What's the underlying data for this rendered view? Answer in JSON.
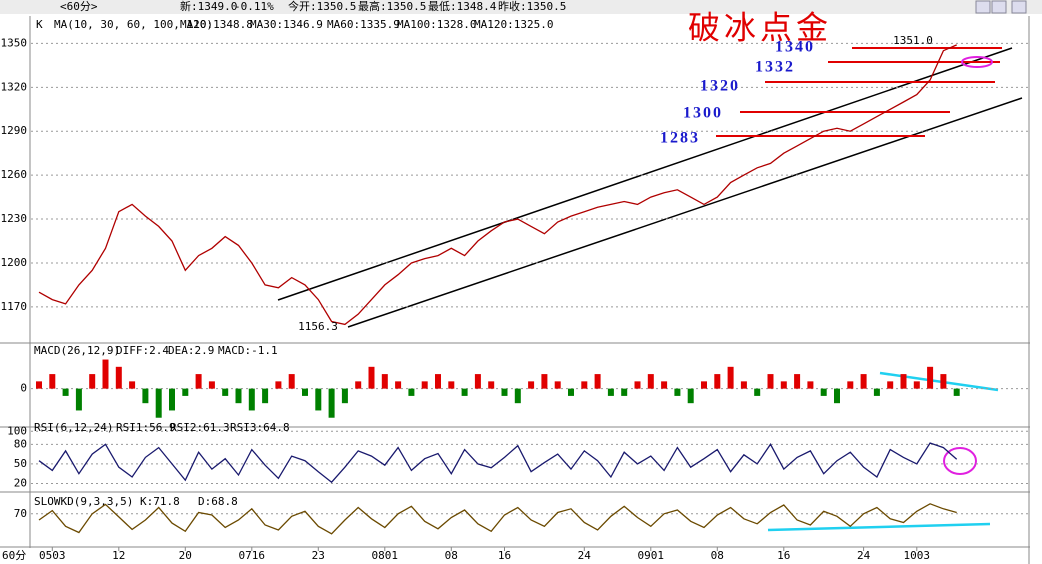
{
  "header": {
    "period": "<60分>",
    "items": [
      "新:1349.0",
      "-0.11%",
      "今开:1350.5",
      "最高:1350.5",
      "最低:1348.4",
      "昨收:1350.5"
    ],
    "corner": "60分"
  },
  "chart_data": [
    {
      "type": "line",
      "title": "K",
      "legend": [
        "MA(10, 30, 60, 100, 120)",
        "MA10:1348.8",
        "MA30:1346.9",
        "MA60:1335.9",
        "MA100:1328.0",
        "MA120:1325.0"
      ],
      "annotations": [
        "破冰点金",
        "1340",
        "1332",
        "1320",
        "1300",
        "1283",
        "1351.0",
        "1156.3"
      ],
      "color": "#b00000",
      "ylim": [
        1146,
        1366
      ],
      "yticks": [
        1170,
        1200,
        1230,
        1260,
        1290,
        1320,
        1350
      ],
      "grid": true,
      "values": [
        1180,
        1175,
        1172,
        1185,
        1195,
        1210,
        1235,
        1240,
        1232,
        1225,
        1215,
        1195,
        1205,
        1210,
        1218,
        1212,
        1200,
        1185,
        1183,
        1190,
        1185,
        1175,
        1160,
        1158,
        1165,
        1175,
        1185,
        1192,
        1200,
        1203,
        1205,
        1210,
        1205,
        1215,
        1222,
        1228,
        1230,
        1225,
        1220,
        1228,
        1232,
        1235,
        1238,
        1240,
        1242,
        1240,
        1245,
        1248,
        1250,
        1245,
        1240,
        1245,
        1255,
        1260,
        1265,
        1268,
        1275,
        1280,
        1285,
        1290,
        1292,
        1290,
        1295,
        1300,
        1305,
        1310,
        1315,
        1325,
        1345,
        1349
      ]
    },
    {
      "type": "bar",
      "title": "MACD(26,12,9)",
      "legend": [
        "DIFF:2.4",
        "DEA:2.9",
        "MACD:-1.1"
      ],
      "color": "#e00000",
      "negative_color": "#008000",
      "ylim": [
        -5,
        6
      ],
      "yticks": [
        0
      ],
      "grid": true,
      "values": [
        1,
        2,
        -1,
        -3,
        2,
        4,
        3,
        1,
        -2,
        -4,
        -3,
        -1,
        2,
        1,
        -1,
        -2,
        -3,
        -2,
        1,
        2,
        -1,
        -3,
        -4,
        -2,
        1,
        3,
        2,
        1,
        -1,
        1,
        2,
        1,
        -1,
        2,
        1,
        -1,
        -2,
        1,
        2,
        1,
        -1,
        1,
        2,
        -1,
        -1,
        1,
        2,
        1,
        -1,
        -2,
        1,
        2,
        3,
        1,
        -1,
        2,
        1,
        2,
        1,
        -1,
        -2,
        1,
        2,
        -1,
        1,
        2,
        1,
        3,
        2,
        -1
      ]
    },
    {
      "type": "line",
      "title": "RSI(6,12,24)",
      "legend": [
        "RSI1:56.9",
        "RSI2:61.3",
        "RSI3:64.8"
      ],
      "color": "#1a1a6e",
      "ylim": [
        10,
        102
      ],
      "yticks": [
        20,
        50,
        80,
        100
      ],
      "grid": true,
      "values": [
        55,
        40,
        70,
        35,
        65,
        80,
        45,
        30,
        60,
        75,
        50,
        25,
        68,
        42,
        58,
        33,
        72,
        48,
        28,
        62,
        55,
        38,
        22,
        45,
        70,
        62,
        48,
        75,
        40,
        58,
        66,
        35,
        72,
        50,
        44,
        60,
        78,
        38,
        52,
        65,
        42,
        70,
        55,
        30,
        68,
        50,
        62,
        40,
        75,
        45,
        58,
        72,
        38,
        64,
        50,
        80,
        42,
        60,
        70,
        35,
        55,
        68,
        45,
        30,
        72,
        60,
        50,
        82,
        75,
        57
      ]
    },
    {
      "type": "line",
      "title": "SLOWKD(9,3,3,5)",
      "legend": [
        "K:71.8",
        "D:68.8"
      ],
      "color": "#6b4a00",
      "ylim": [
        20,
        100
      ],
      "yticks": [
        70
      ],
      "grid": true,
      "categories": [
        null,
        "0503",
        null,
        null,
        null,
        null,
        "12",
        null,
        null,
        null,
        null,
        "20",
        null,
        null,
        null,
        null,
        "0716",
        null,
        null,
        null,
        null,
        "23",
        null,
        null,
        null,
        null,
        "0801",
        null,
        null,
        null,
        null,
        "08",
        null,
        null,
        null,
        "16",
        null,
        null,
        null,
        null,
        null,
        "24",
        null,
        null,
        null,
        null,
        "0901",
        null,
        null,
        null,
        null,
        "08",
        null,
        null,
        null,
        null,
        "16",
        null,
        null,
        null,
        null,
        null,
        "24",
        null,
        null,
        null,
        "1003",
        null,
        null,
        null
      ],
      "values": [
        60,
        75,
        50,
        40,
        70,
        85,
        65,
        45,
        60,
        80,
        55,
        42,
        72,
        68,
        48,
        60,
        78,
        52,
        44,
        66,
        74,
        50,
        38,
        60,
        80,
        62,
        48,
        70,
        82,
        58,
        46,
        64,
        76,
        54,
        42,
        68,
        80,
        60,
        50,
        72,
        78,
        56,
        44,
        66,
        82,
        64,
        50,
        70,
        76,
        58,
        48,
        68,
        80,
        62,
        54,
        72,
        84,
        60,
        52,
        74,
        66,
        50,
        70,
        80,
        62,
        56,
        74,
        86,
        78,
        72
      ]
    }
  ]
}
